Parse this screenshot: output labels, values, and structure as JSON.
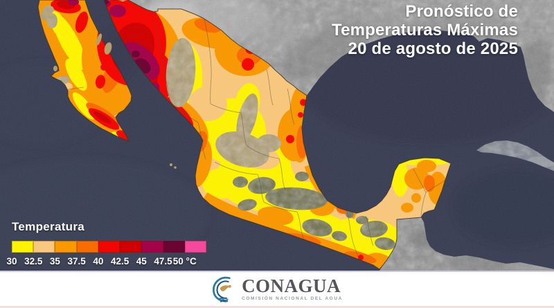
{
  "header": {
    "title_line1": "Pronóstico de",
    "title_line2": "Temperaturas Máximas",
    "title_line3": "20 de agosto de 2025"
  },
  "legend": {
    "title": "Temperatura",
    "unit": "°C",
    "bands": [
      {
        "label": "30",
        "color": "#FEF400"
      },
      {
        "label": "32.5",
        "color": "#FAC87D"
      },
      {
        "label": "35",
        "color": "#FA9800"
      },
      {
        "label": "37.5",
        "color": "#F96C00"
      },
      {
        "label": "40",
        "color": "#F50500"
      },
      {
        "label": "42.5",
        "color": "#D10000"
      },
      {
        "label": "45",
        "color": "#A30348"
      },
      {
        "label": "47.5",
        "color": "#6B0432"
      },
      {
        "label": "50",
        "color": "#F8489D"
      }
    ]
  },
  "map": {
    "ocean_color": "#3A3E53",
    "us_land_color": "#989898",
    "central_america_land_color": "#8F8F8F",
    "cuba_land_color": "#79808D",
    "terrain_khaki": "#B3A06F",
    "terrain_olive": "#6F7040"
  },
  "footer": {
    "org": "CONAGUA",
    "subtitle": "COMISIÓN NACIONAL DEL AGUA"
  }
}
